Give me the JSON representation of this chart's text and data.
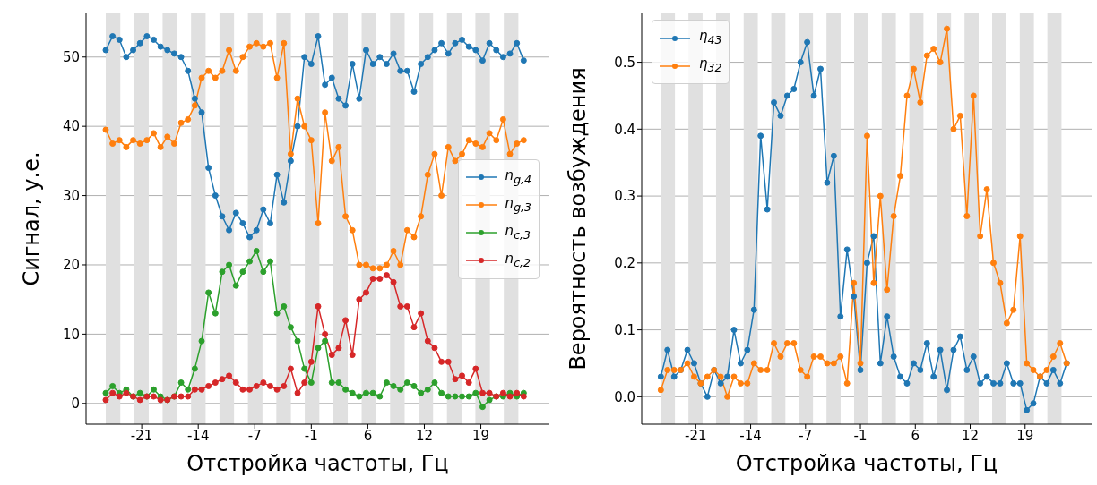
{
  "chart_data": [
    {
      "type": "line",
      "xlabel": "Отстройка частоты, Гц",
      "ylabel": "Сигнал, у.е.",
      "marker": "circle",
      "line_style": "solid",
      "grid": "y",
      "legend": "center right",
      "x": [
        -24.8,
        -24.0,
        -23.2,
        -22.4,
        -21.6,
        -20.8,
        -20.0,
        -19.2,
        -18.4,
        -17.6,
        -16.8,
        -16.0,
        -15.2,
        -14.4,
        -13.6,
        -12.8,
        -12.0,
        -11.2,
        -10.4,
        -9.6,
        -8.8,
        -8.0,
        -7.2,
        -6.4,
        -5.6,
        -4.8,
        -4.0,
        -3.2,
        -2.4,
        -1.6,
        -0.8,
        0.0,
        0.8,
        1.6,
        2.4,
        3.2,
        4.0,
        4.8,
        5.6,
        6.4,
        7.2,
        8.0,
        8.8,
        9.6,
        10.4,
        11.2,
        12.0,
        12.8,
        13.6,
        14.4,
        15.2,
        16.0,
        16.8,
        17.6,
        18.4,
        19.2,
        20.0,
        20.8,
        21.6,
        22.4,
        23.2,
        24.0
      ],
      "xlim": [
        -27.1,
        27.0
      ],
      "xticks": [
        {
          "value": -20.6,
          "label": "-21"
        },
        {
          "value": -14.0,
          "label": "-14"
        },
        {
          "value": -7.4,
          "label": "-7"
        },
        {
          "value": -0.8,
          "label": "-1"
        },
        {
          "value": 5.8,
          "label": "6"
        },
        {
          "value": 12.4,
          "label": "12"
        },
        {
          "value": 19.0,
          "label": "19"
        }
      ],
      "ylim": [
        -3,
        56.3
      ],
      "yticks": [
        0,
        10,
        20,
        30,
        40,
        50
      ],
      "series": [
        {
          "name": "n$_{g,4}$",
          "color": "#1f77b4",
          "values": [
            51,
            53,
            52.5,
            50,
            51,
            52,
            53,
            52.5,
            51.5,
            51,
            50.5,
            50,
            48,
            44,
            42,
            34,
            30,
            27,
            25,
            27.5,
            26,
            24,
            25,
            28,
            26,
            33,
            29,
            35,
            40,
            50,
            49,
            53,
            46,
            47,
            44,
            43,
            49,
            44,
            51,
            49,
            50,
            49,
            50.5,
            48,
            48,
            45,
            49,
            50,
            51,
            52,
            50.5,
            52,
            52.5,
            51.5,
            51,
            49.5,
            52,
            51,
            50,
            50.5,
            52,
            49.5
          ]
        },
        {
          "name": "n$_{g,3}$",
          "color": "#ff7f0e",
          "values": [
            39.5,
            37.5,
            38,
            37,
            38,
            37.5,
            38,
            39,
            37,
            38.5,
            37.5,
            40.5,
            41,
            43,
            47,
            48,
            47,
            48,
            51,
            48,
            50,
            51.5,
            52,
            51.5,
            52,
            47,
            52,
            36,
            44,
            40,
            38,
            26,
            42,
            35,
            37,
            27,
            25,
            20,
            20,
            19.5,
            19.5,
            20,
            22,
            20,
            25,
            24,
            27,
            33,
            36,
            30,
            37,
            35,
            36,
            38,
            37.5,
            37,
            39,
            38,
            41,
            36,
            37.5,
            38
          ]
        },
        {
          "name": "n$_{c,3}$",
          "color": "#2ca02c",
          "values": [
            1.5,
            2.5,
            1.5,
            2,
            1,
            1.5,
            1,
            2,
            1,
            0.5,
            1,
            3,
            2,
            5,
            9,
            16,
            13,
            19,
            20,
            17,
            19,
            20.5,
            22,
            19,
            20.5,
            13,
            14,
            11,
            9,
            5,
            3,
            8,
            9,
            3,
            3,
            2,
            1.5,
            1,
            1.5,
            1.5,
            1,
            3,
            2.5,
            2,
            3,
            2.5,
            1.5,
            2,
            3,
            1.5,
            1,
            1,
            1,
            1,
            1.5,
            -0.5,
            0.5,
            1,
            1,
            1.5,
            1,
            1.5
          ]
        },
        {
          "name": "n$_{c,2}$",
          "color": "#d62728",
          "values": [
            0.5,
            1.5,
            1,
            1.5,
            1,
            0.5,
            1,
            1,
            0.5,
            0.5,
            1,
            1,
            1,
            2,
            2,
            2.5,
            3,
            3.5,
            4,
            3,
            2,
            2,
            2.5,
            3,
            2.5,
            2,
            2.5,
            5,
            1.5,
            3,
            6,
            14,
            10,
            7,
            8,
            12,
            7,
            15,
            16,
            18,
            18,
            18.5,
            17.5,
            14,
            14,
            11,
            13,
            9,
            8,
            6,
            6,
            3.5,
            4,
            3,
            5,
            1.5,
            1.5,
            1,
            1.5,
            1,
            1.5,
            1
          ]
        }
      ],
      "bands": [
        {
          "axis": "x",
          "from": -24.8,
          "to": -23.1,
          "color": "#e0e0e0"
        },
        {
          "axis": "x",
          "from": -21.48,
          "to": -19.78,
          "color": "#e0e0e0"
        },
        {
          "axis": "x",
          "from": -18.16,
          "to": -16.46,
          "color": "#e0e0e0"
        },
        {
          "axis": "x",
          "from": -14.84,
          "to": -13.14,
          "color": "#e0e0e0"
        },
        {
          "axis": "x",
          "from": -11.52,
          "to": -9.82,
          "color": "#e0e0e0"
        },
        {
          "axis": "x",
          "from": -8.2,
          "to": -6.5,
          "color": "#e0e0e0"
        },
        {
          "axis": "x",
          "from": -4.88,
          "to": -3.18,
          "color": "#e0e0e0"
        },
        {
          "axis": "x",
          "from": -1.56,
          "to": 0.14,
          "color": "#e0e0e0"
        },
        {
          "axis": "x",
          "from": 1.76,
          "to": 3.46,
          "color": "#e0e0e0"
        },
        {
          "axis": "x",
          "from": 5.08,
          "to": 6.78,
          "color": "#e0e0e0"
        },
        {
          "axis": "x",
          "from": 8.4,
          "to": 10.1,
          "color": "#e0e0e0"
        },
        {
          "axis": "x",
          "from": 11.72,
          "to": 13.42,
          "color": "#e0e0e0"
        },
        {
          "axis": "x",
          "from": 15.04,
          "to": 16.74,
          "color": "#e0e0e0"
        },
        {
          "axis": "x",
          "from": 18.36,
          "to": 20.06,
          "color": "#e0e0e0"
        },
        {
          "axis": "x",
          "from": 21.68,
          "to": 23.38,
          "color": "#e0e0e0"
        }
      ]
    },
    {
      "type": "line",
      "xlabel": "Отстройка частоты, Гц",
      "ylabel": "Вероятность возбуждения",
      "marker": "circle",
      "line_style": "solid",
      "grid": "y",
      "legend": "top left",
      "x": [
        -24.8,
        -24.0,
        -23.2,
        -22.4,
        -21.6,
        -20.8,
        -20.0,
        -19.2,
        -18.4,
        -17.6,
        -16.8,
        -16.0,
        -15.2,
        -14.4,
        -13.6,
        -12.8,
        -12.0,
        -11.2,
        -10.4,
        -9.6,
        -8.8,
        -8.0,
        -7.2,
        -6.4,
        -5.6,
        -4.8,
        -4.0,
        -3.2,
        -2.4,
        -1.6,
        -0.8,
        0.0,
        0.8,
        1.6,
        2.4,
        3.2,
        4.0,
        4.8,
        5.6,
        6.4,
        7.2,
        8.0,
        8.8,
        9.6,
        10.4,
        11.2,
        12.0,
        12.8,
        13.6,
        14.4,
        15.2,
        16.0,
        16.8,
        17.6,
        18.4,
        19.2,
        20.0,
        20.8,
        21.6,
        22.4,
        23.2,
        24.0
      ],
      "xlim": [
        -27.1,
        27.0
      ],
      "xticks": [
        {
          "value": -20.6,
          "label": "-21"
        },
        {
          "value": -14.0,
          "label": "-14"
        },
        {
          "value": -7.4,
          "label": "-7"
        },
        {
          "value": -0.8,
          "label": "-1"
        },
        {
          "value": 5.8,
          "label": "6"
        },
        {
          "value": 12.4,
          "label": "12"
        },
        {
          "value": 19.0,
          "label": "19"
        }
      ],
      "ylim": [
        -0.041,
        0.573
      ],
      "yticks": [
        {
          "value": 0,
          "label": "0.0"
        },
        0.1,
        0.2,
        0.3,
        0.4,
        0.5
      ],
      "series": [
        {
          "name": "η$_{43}$",
          "color": "#1f77b4",
          "values": [
            0.03,
            0.07,
            0.03,
            0.04,
            0.07,
            0.05,
            0.02,
            0.0,
            0.04,
            0.02,
            0.03,
            0.1,
            0.05,
            0.07,
            0.13,
            0.39,
            0.28,
            0.44,
            0.42,
            0.45,
            0.46,
            0.5,
            0.53,
            0.45,
            0.49,
            0.32,
            0.36,
            0.12,
            0.22,
            0.15,
            0.04,
            0.2,
            0.24,
            0.05,
            0.12,
            0.06,
            0.03,
            0.02,
            0.05,
            0.04,
            0.08,
            0.03,
            0.07,
            0.01,
            0.07,
            0.09,
            0.04,
            0.06,
            0.02,
            0.03,
            0.02,
            0.02,
            0.05,
            0.02,
            0.02,
            -0.02,
            -0.01,
            0.03,
            0.02,
            0.04,
            0.02,
            0.05
          ]
        },
        {
          "name": "η$_{32}$",
          "color": "#ff7f0e",
          "values": [
            0.01,
            0.04,
            0.04,
            0.04,
            0.05,
            0.03,
            0.02,
            0.03,
            0.04,
            0.03,
            0.0,
            0.03,
            0.02,
            0.02,
            0.05,
            0.04,
            0.04,
            0.08,
            0.06,
            0.08,
            0.08,
            0.04,
            0.03,
            0.06,
            0.06,
            0.05,
            0.05,
            0.06,
            0.02,
            0.17,
            0.05,
            0.39,
            0.17,
            0.3,
            0.16,
            0.27,
            0.33,
            0.45,
            0.49,
            0.44,
            0.51,
            0.52,
            0.5,
            0.55,
            0.4,
            0.42,
            0.27,
            0.45,
            0.24,
            0.31,
            0.2,
            0.17,
            0.11,
            0.13,
            0.24,
            0.05,
            0.04,
            0.03,
            0.04,
            0.06,
            0.08,
            0.05
          ]
        }
      ],
      "bands": [
        {
          "axis": "x",
          "from": -24.8,
          "to": -23.1,
          "color": "#e0e0e0"
        },
        {
          "axis": "x",
          "from": -21.48,
          "to": -19.78,
          "color": "#e0e0e0"
        },
        {
          "axis": "x",
          "from": -18.16,
          "to": -16.46,
          "color": "#e0e0e0"
        },
        {
          "axis": "x",
          "from": -14.84,
          "to": -13.14,
          "color": "#e0e0e0"
        },
        {
          "axis": "x",
          "from": -11.52,
          "to": -9.82,
          "color": "#e0e0e0"
        },
        {
          "axis": "x",
          "from": -8.2,
          "to": -6.5,
          "color": "#e0e0e0"
        },
        {
          "axis": "x",
          "from": -4.88,
          "to": -3.18,
          "color": "#e0e0e0"
        },
        {
          "axis": "x",
          "from": -1.56,
          "to": 0.14,
          "color": "#e0e0e0"
        },
        {
          "axis": "x",
          "from": 1.76,
          "to": 3.46,
          "color": "#e0e0e0"
        },
        {
          "axis": "x",
          "from": 5.08,
          "to": 6.78,
          "color": "#e0e0e0"
        },
        {
          "axis": "x",
          "from": 8.4,
          "to": 10.1,
          "color": "#e0e0e0"
        },
        {
          "axis": "x",
          "from": 11.72,
          "to": 13.42,
          "color": "#e0e0e0"
        },
        {
          "axis": "x",
          "from": 15.04,
          "to": 16.74,
          "color": "#e0e0e0"
        },
        {
          "axis": "x",
          "from": 18.36,
          "to": 20.06,
          "color": "#e0e0e0"
        },
        {
          "axis": "x",
          "from": 21.68,
          "to": 23.38,
          "color": "#e0e0e0"
        }
      ]
    }
  ]
}
